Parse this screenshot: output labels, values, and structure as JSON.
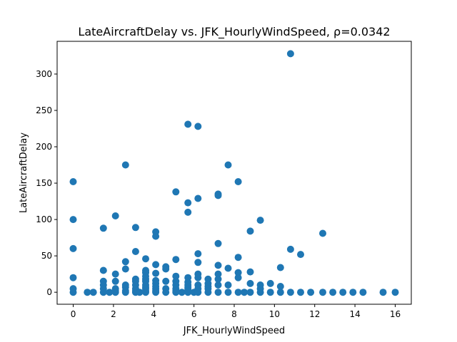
{
  "chart_data": {
    "type": "scatter",
    "title": "LateAircraftDelay vs. JFK_HourlyWindSpeed, ρ=0.0342",
    "xlabel": "JFK_HourlyWindSpeed",
    "ylabel": "LateAircraftDelay",
    "xlim": [
      -0.8,
      16.8
    ],
    "ylim": [
      -16.5,
      345
    ],
    "xticks": [
      0,
      2,
      4,
      6,
      8,
      10,
      12,
      14,
      16
    ],
    "yticks": [
      0,
      50,
      100,
      150,
      200,
      250,
      300
    ],
    "grid": false,
    "marker_color": "#1f77b4",
    "x": [
      0,
      0,
      0,
      0,
      0,
      0,
      0.7,
      1.0,
      1.5,
      1.5,
      1.5,
      1.5,
      1.5,
      1.5,
      1.8,
      2.1,
      2.1,
      2.1,
      2.1,
      2.1,
      2.1,
      2.6,
      2.6,
      2.6,
      2.6,
      2.6,
      2.6,
      2.6,
      3.1,
      3.1,
      3.1,
      3.1,
      3.1,
      3.1,
      3.1,
      3.1,
      3.3,
      3.6,
      3.6,
      3.6,
      3.6,
      3.6,
      3.6,
      3.6,
      3.6,
      3.6,
      3.6,
      3.6,
      4.1,
      4.1,
      4.1,
      4.1,
      4.1,
      4.1,
      4.1,
      4.1,
      4.1,
      4.1,
      4.6,
      4.6,
      4.6,
      4.6,
      4.6,
      5.1,
      5.1,
      5.1,
      5.1,
      5.1,
      5.1,
      5.1,
      5.1,
      5.4,
      5.7,
      5.7,
      5.7,
      5.7,
      5.7,
      5.7,
      5.7,
      5.7,
      5.7,
      5.7,
      6.0,
      6.2,
      6.2,
      6.2,
      6.2,
      6.2,
      6.2,
      6.2,
      6.2,
      6.2,
      6.7,
      6.7,
      6.7,
      6.7,
      6.7,
      7.2,
      7.2,
      7.2,
      7.2,
      7.2,
      7.2,
      7.2,
      7.2,
      7.7,
      7.7,
      7.7,
      7.7,
      8.2,
      8.2,
      8.2,
      8.2,
      8.2,
      8.5,
      8.8,
      8.8,
      8.8,
      8.8,
      9.3,
      9.3,
      9.3,
      9.3,
      9.8,
      9.8,
      10.3,
      10.3,
      10.3,
      10.8,
      10.8,
      10.8,
      11.3,
      11.3,
      11.8,
      12.4,
      12.4,
      12.9,
      13.4,
      13.9,
      14.4,
      15.4,
      16.0
    ],
    "values": [
      152,
      100,
      60,
      20,
      5,
      0,
      0,
      0,
      88,
      30,
      15,
      10,
      5,
      0,
      0,
      105,
      25,
      15,
      5,
      2,
      0,
      175,
      42,
      32,
      10,
      7,
      2,
      0,
      89,
      56,
      18,
      15,
      10,
      5,
      2,
      0,
      0,
      46,
      30,
      27,
      22,
      18,
      15,
      10,
      7,
      5,
      2,
      0,
      83,
      77,
      38,
      26,
      16,
      12,
      8,
      5,
      2,
      0,
      35,
      32,
      15,
      5,
      0,
      138,
      45,
      22,
      15,
      10,
      5,
      2,
      0,
      0,
      231,
      123,
      110,
      20,
      14,
      10,
      7,
      5,
      2,
      0,
      0,
      228,
      129,
      53,
      41,
      25,
      20,
      10,
      5,
      0,
      18,
      12,
      8,
      5,
      0,
      135,
      133,
      67,
      37,
      25,
      18,
      10,
      0,
      175,
      33,
      10,
      0,
      152,
      48,
      27,
      20,
      0,
      0,
      84,
      28,
      12,
      0,
      99,
      10,
      5,
      0,
      12,
      0,
      34,
      8,
      0,
      328,
      59,
      0,
      52,
      0,
      0,
      81,
      0,
      0,
      0,
      0,
      0,
      0,
      0
    ]
  }
}
